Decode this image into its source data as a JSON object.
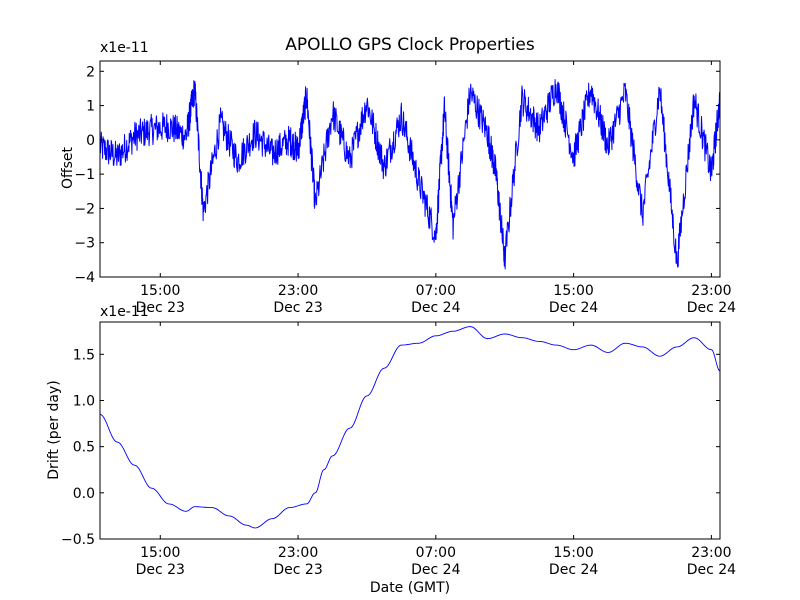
{
  "chart_data": [
    {
      "type": "line",
      "title": "APOLLO GPS Clock Properties",
      "xlabel": "",
      "ylabel": "Offset",
      "y_scale_label": "x1e-11",
      "ylim": [
        -4,
        2.3
      ],
      "yticks": [
        "−4",
        "−3",
        "−2",
        "−1",
        "0",
        "1",
        "2"
      ],
      "xlim": [
        "Dec 23 11:30",
        "Dec 24 23:30"
      ],
      "xticks": [
        {
          "time": "15:00",
          "date": "Dec 23"
        },
        {
          "time": "23:00",
          "date": "Dec 23"
        },
        {
          "time": "07:00",
          "date": "Dec 24"
        },
        {
          "time": "15:00",
          "date": "Dec 24"
        },
        {
          "time": "23:00",
          "date": "Dec 24"
        }
      ],
      "color": "#0000ff",
      "series": [
        {
          "x": [
            "Dec 23 11:30",
            "Dec 23 12:30",
            "Dec 23 13:30",
            "Dec 23 14:30",
            "Dec 23 15:30",
            "Dec 23 16:30",
            "Dec 23 17:00",
            "Dec 23 17:30",
            "Dec 23 18:30",
            "Dec 23 19:30",
            "Dec 23 20:30",
            "Dec 23 21:30",
            "Dec 23 22:30",
            "Dec 23 23:00",
            "Dec 23 23:30",
            "Dec 24 00:00",
            "Dec 24 01:00",
            "Dec 24 02:00",
            "Dec 24 03:00",
            "Dec 24 04:00",
            "Dec 24 05:00",
            "Dec 24 06:00",
            "Dec 24 07:00",
            "Dec 24 07:30",
            "Dec 24 08:00",
            "Dec 24 09:00",
            "Dec 24 10:00",
            "Dec 24 10:30",
            "Dec 24 11:00",
            "Dec 24 12:00",
            "Dec 24 13:00",
            "Dec 24 14:00",
            "Dec 24 15:00",
            "Dec 24 16:00",
            "Dec 24 17:00",
            "Dec 24 18:00",
            "Dec 24 19:00",
            "Dec 24 20:00",
            "Dec 24 21:00",
            "Dec 24 22:00",
            "Dec 24 23:00",
            "Dec 24 23:30"
          ],
          "y": [
            -0.2,
            -0.5,
            0.1,
            0.3,
            0.4,
            0.1,
            1.5,
            -2.1,
            0.5,
            -0.6,
            0.2,
            -0.4,
            0.0,
            -0.3,
            1.3,
            -1.9,
            0.8,
            -0.6,
            1.1,
            -0.8,
            0.7,
            -1.2,
            -2.8,
            0.9,
            -2.5,
            1.4,
            0.2,
            -1.0,
            -3.5,
            1.2,
            0.3,
            1.6,
            -0.5,
            1.5,
            -0.2,
            1.4,
            -2.2,
            1.5,
            -3.6,
            1.2,
            -1.0,
            1.2
          ]
        }
      ]
    },
    {
      "type": "line",
      "title": "",
      "xlabel": "Date (GMT)",
      "ylabel": "Drift (per day)",
      "y_scale_label": "x1e-11",
      "ylim": [
        -0.5,
        1.85
      ],
      "yticks": [
        "−0.5",
        "0.0",
        "0.5",
        "1.0",
        "1.5"
      ],
      "xlim": [
        "Dec 23 11:30",
        "Dec 24 23:30"
      ],
      "xticks": [
        {
          "time": "15:00",
          "date": "Dec 23"
        },
        {
          "time": "23:00",
          "date": "Dec 23"
        },
        {
          "time": "07:00",
          "date": "Dec 24"
        },
        {
          "time": "15:00",
          "date": "Dec 24"
        },
        {
          "time": "23:00",
          "date": "Dec 24"
        }
      ],
      "color": "#0000ff",
      "series": [
        {
          "x": [
            "Dec 23 11:30",
            "Dec 23 12:30",
            "Dec 23 13:30",
            "Dec 23 14:30",
            "Dec 23 15:30",
            "Dec 23 16:30",
            "Dec 23 17:00",
            "Dec 23 18:00",
            "Dec 23 19:00",
            "Dec 23 20:00",
            "Dec 23 20:30",
            "Dec 23 21:30",
            "Dec 23 22:30",
            "Dec 23 23:30",
            "Dec 24 00:00",
            "Dec 24 00:30",
            "Dec 24 01:00",
            "Dec 24 02:00",
            "Dec 24 03:00",
            "Dec 24 04:00",
            "Dec 24 05:00",
            "Dec 24 06:00",
            "Dec 24 07:00",
            "Dec 24 08:00",
            "Dec 24 09:00",
            "Dec 24 10:00",
            "Dec 24 11:00",
            "Dec 24 12:00",
            "Dec 24 13:00",
            "Dec 24 14:00",
            "Dec 24 15:00",
            "Dec 24 16:00",
            "Dec 24 17:00",
            "Dec 24 18:00",
            "Dec 24 19:00",
            "Dec 24 20:00",
            "Dec 24 21:00",
            "Dec 24 22:00",
            "Dec 24 23:00",
            "Dec 24 23:30"
          ],
          "y": [
            0.85,
            0.55,
            0.3,
            0.05,
            -0.12,
            -0.2,
            -0.15,
            -0.16,
            -0.25,
            -0.35,
            -0.38,
            -0.28,
            -0.16,
            -0.12,
            0.0,
            0.25,
            0.4,
            0.7,
            1.05,
            1.35,
            1.6,
            1.62,
            1.7,
            1.75,
            1.8,
            1.67,
            1.72,
            1.68,
            1.64,
            1.6,
            1.55,
            1.6,
            1.52,
            1.62,
            1.58,
            1.48,
            1.58,
            1.68,
            1.55,
            1.32
          ]
        }
      ]
    }
  ]
}
